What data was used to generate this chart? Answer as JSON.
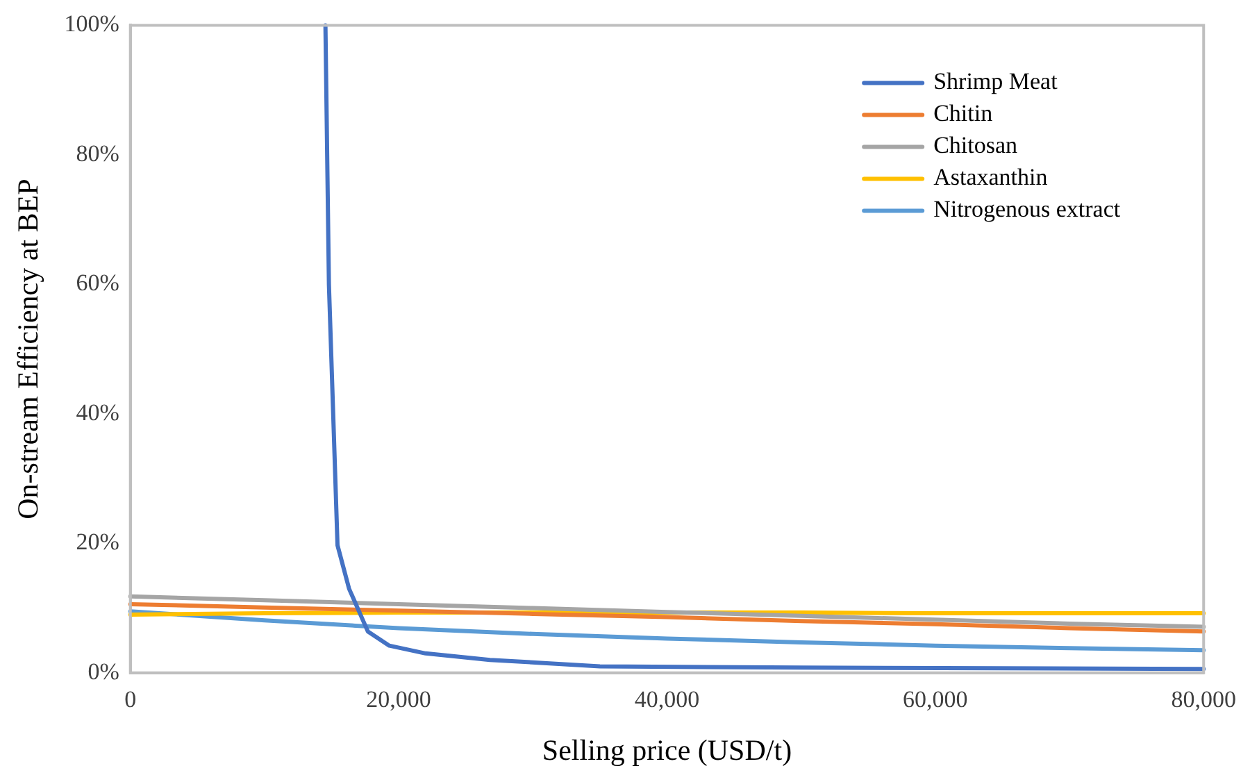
{
  "chart_data": {
    "type": "line",
    "xlabel": "Selling price (USD/t)",
    "ylabel": "On-stream Efficiency at BEP",
    "x": [
      0,
      10000,
      20000,
      30000,
      40000,
      50000,
      60000,
      70000,
      80000
    ],
    "series": [
      {
        "name": "Shrimp Meat",
        "color": "#4472c4",
        "x": [
          14540,
          14800,
          15440,
          16300,
          17700,
          19300,
          22000,
          26800,
          35000,
          50000,
          65000,
          80000
        ],
        "values": [
          100,
          60,
          19.7,
          13,
          6.4,
          4.2,
          3,
          2,
          1,
          0.8,
          0.7,
          0.6
        ]
      },
      {
        "name": "Chitin",
        "color": "#ed7d31",
        "values": [
          10.6,
          10.1,
          9.6,
          9.1,
          8.6,
          8.0,
          7.5,
          6.9,
          6.4
        ]
      },
      {
        "name": "Chitosan",
        "color": "#a5a5a5",
        "values": [
          11.8,
          11.2,
          10.6,
          10.0,
          9.4,
          8.8,
          8.2,
          7.6,
          7.1
        ]
      },
      {
        "name": "Astaxanthin",
        "color": "#ffc000",
        "values": [
          9.0,
          9.2,
          9.3,
          9.3,
          9.3,
          9.3,
          9.2,
          9.2,
          9.2
        ]
      },
      {
        "name": "Nitrogenous extract",
        "color": "#5b9bd5",
        "values": [
          9.5,
          8.1,
          6.9,
          6.0,
          5.3,
          4.7,
          4.2,
          3.8,
          3.5
        ]
      }
    ],
    "xlim": [
      0,
      80000
    ],
    "xticks": [
      0,
      {
        "value": 20000,
        "label": "20,000"
      },
      {
        "value": 40000,
        "label": "40,000"
      },
      {
        "value": 60000,
        "label": "60,000"
      },
      {
        "value": 80000,
        "label": "80,000"
      }
    ],
    "ylim": [
      0,
      100
    ],
    "yticks": [
      {
        "value": 0,
        "label": "0%"
      },
      {
        "value": 20,
        "label": "20%"
      },
      {
        "value": 40,
        "label": "40%"
      },
      {
        "value": 60,
        "label": "60%"
      },
      {
        "value": 80,
        "label": "80%"
      },
      {
        "value": 100,
        "label": "100%"
      }
    ],
    "grid": false,
    "legend": "top right",
    "marker": "none",
    "line_style": "solid"
  }
}
